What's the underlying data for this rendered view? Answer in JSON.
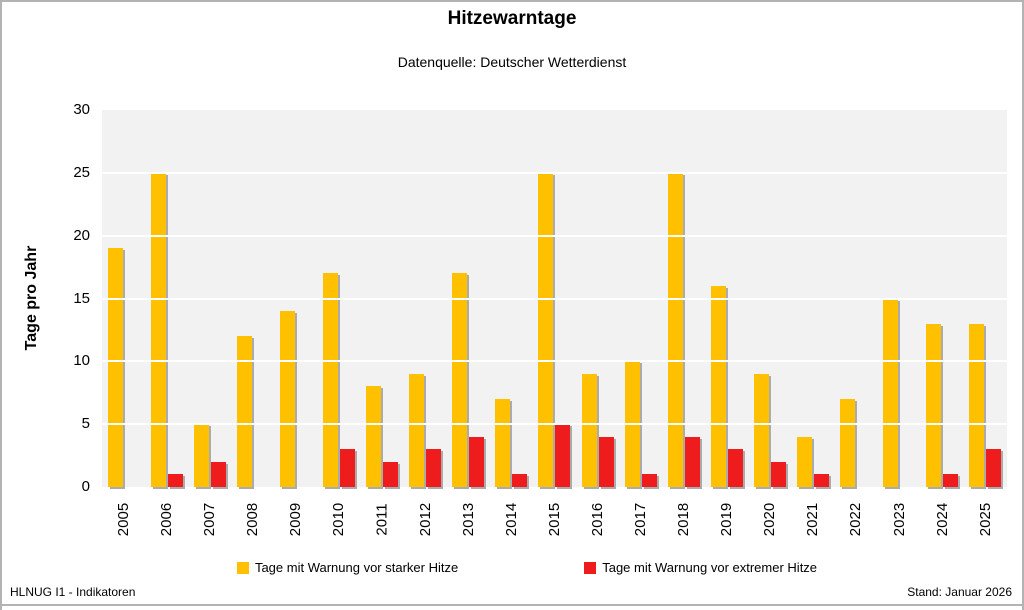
{
  "frame": {
    "title": "Hitzewarntage",
    "subtitle": "Datenquelle: Deutscher Wetterdienst",
    "footer_left": "HLNUG I1 - Indikatoren",
    "footer_right": "Stand: Januar 2026"
  },
  "chart_data": {
    "type": "bar",
    "title": "Hitzewarntage",
    "subtitle": "Datenquelle: Deutscher Wetterdienst",
    "categories": [
      "2005",
      "2006",
      "2007",
      "2008",
      "2009",
      "2010",
      "2011",
      "2012",
      "2013",
      "2014",
      "2015",
      "2016",
      "2017",
      "2018",
      "2019",
      "2020",
      "2021",
      "2022",
      "2023",
      "2024",
      "2025"
    ],
    "series": [
      {
        "name": "Tage mit Warnung vor starker Hitze",
        "color": "#FFC000",
        "values": [
          19,
          25,
          5,
          12,
          14,
          17,
          8,
          9,
          17,
          7,
          25,
          9,
          10,
          25,
          16,
          9,
          4,
          7,
          15,
          13,
          13
        ]
      },
      {
        "name": "Tage mit Warnung vor extremer Hitze",
        "color": "#EE1C1C",
        "values": [
          0,
          1,
          2,
          0,
          0,
          3,
          2,
          3,
          4,
          1,
          5,
          4,
          1,
          4,
          3,
          2,
          1,
          0,
          0,
          1,
          3
        ]
      }
    ],
    "xlabel": "",
    "ylabel": "Tage pro Jahr",
    "ylim": [
      0,
      30
    ],
    "yticks": [
      0,
      5,
      10,
      15,
      20,
      25,
      30
    ],
    "grid": true,
    "legend_position": "bottom",
    "plot_bg": "#F2F2F2",
    "gridline_color": "#FFFFFF",
    "bar_shadow_color": "#ABABAB"
  }
}
